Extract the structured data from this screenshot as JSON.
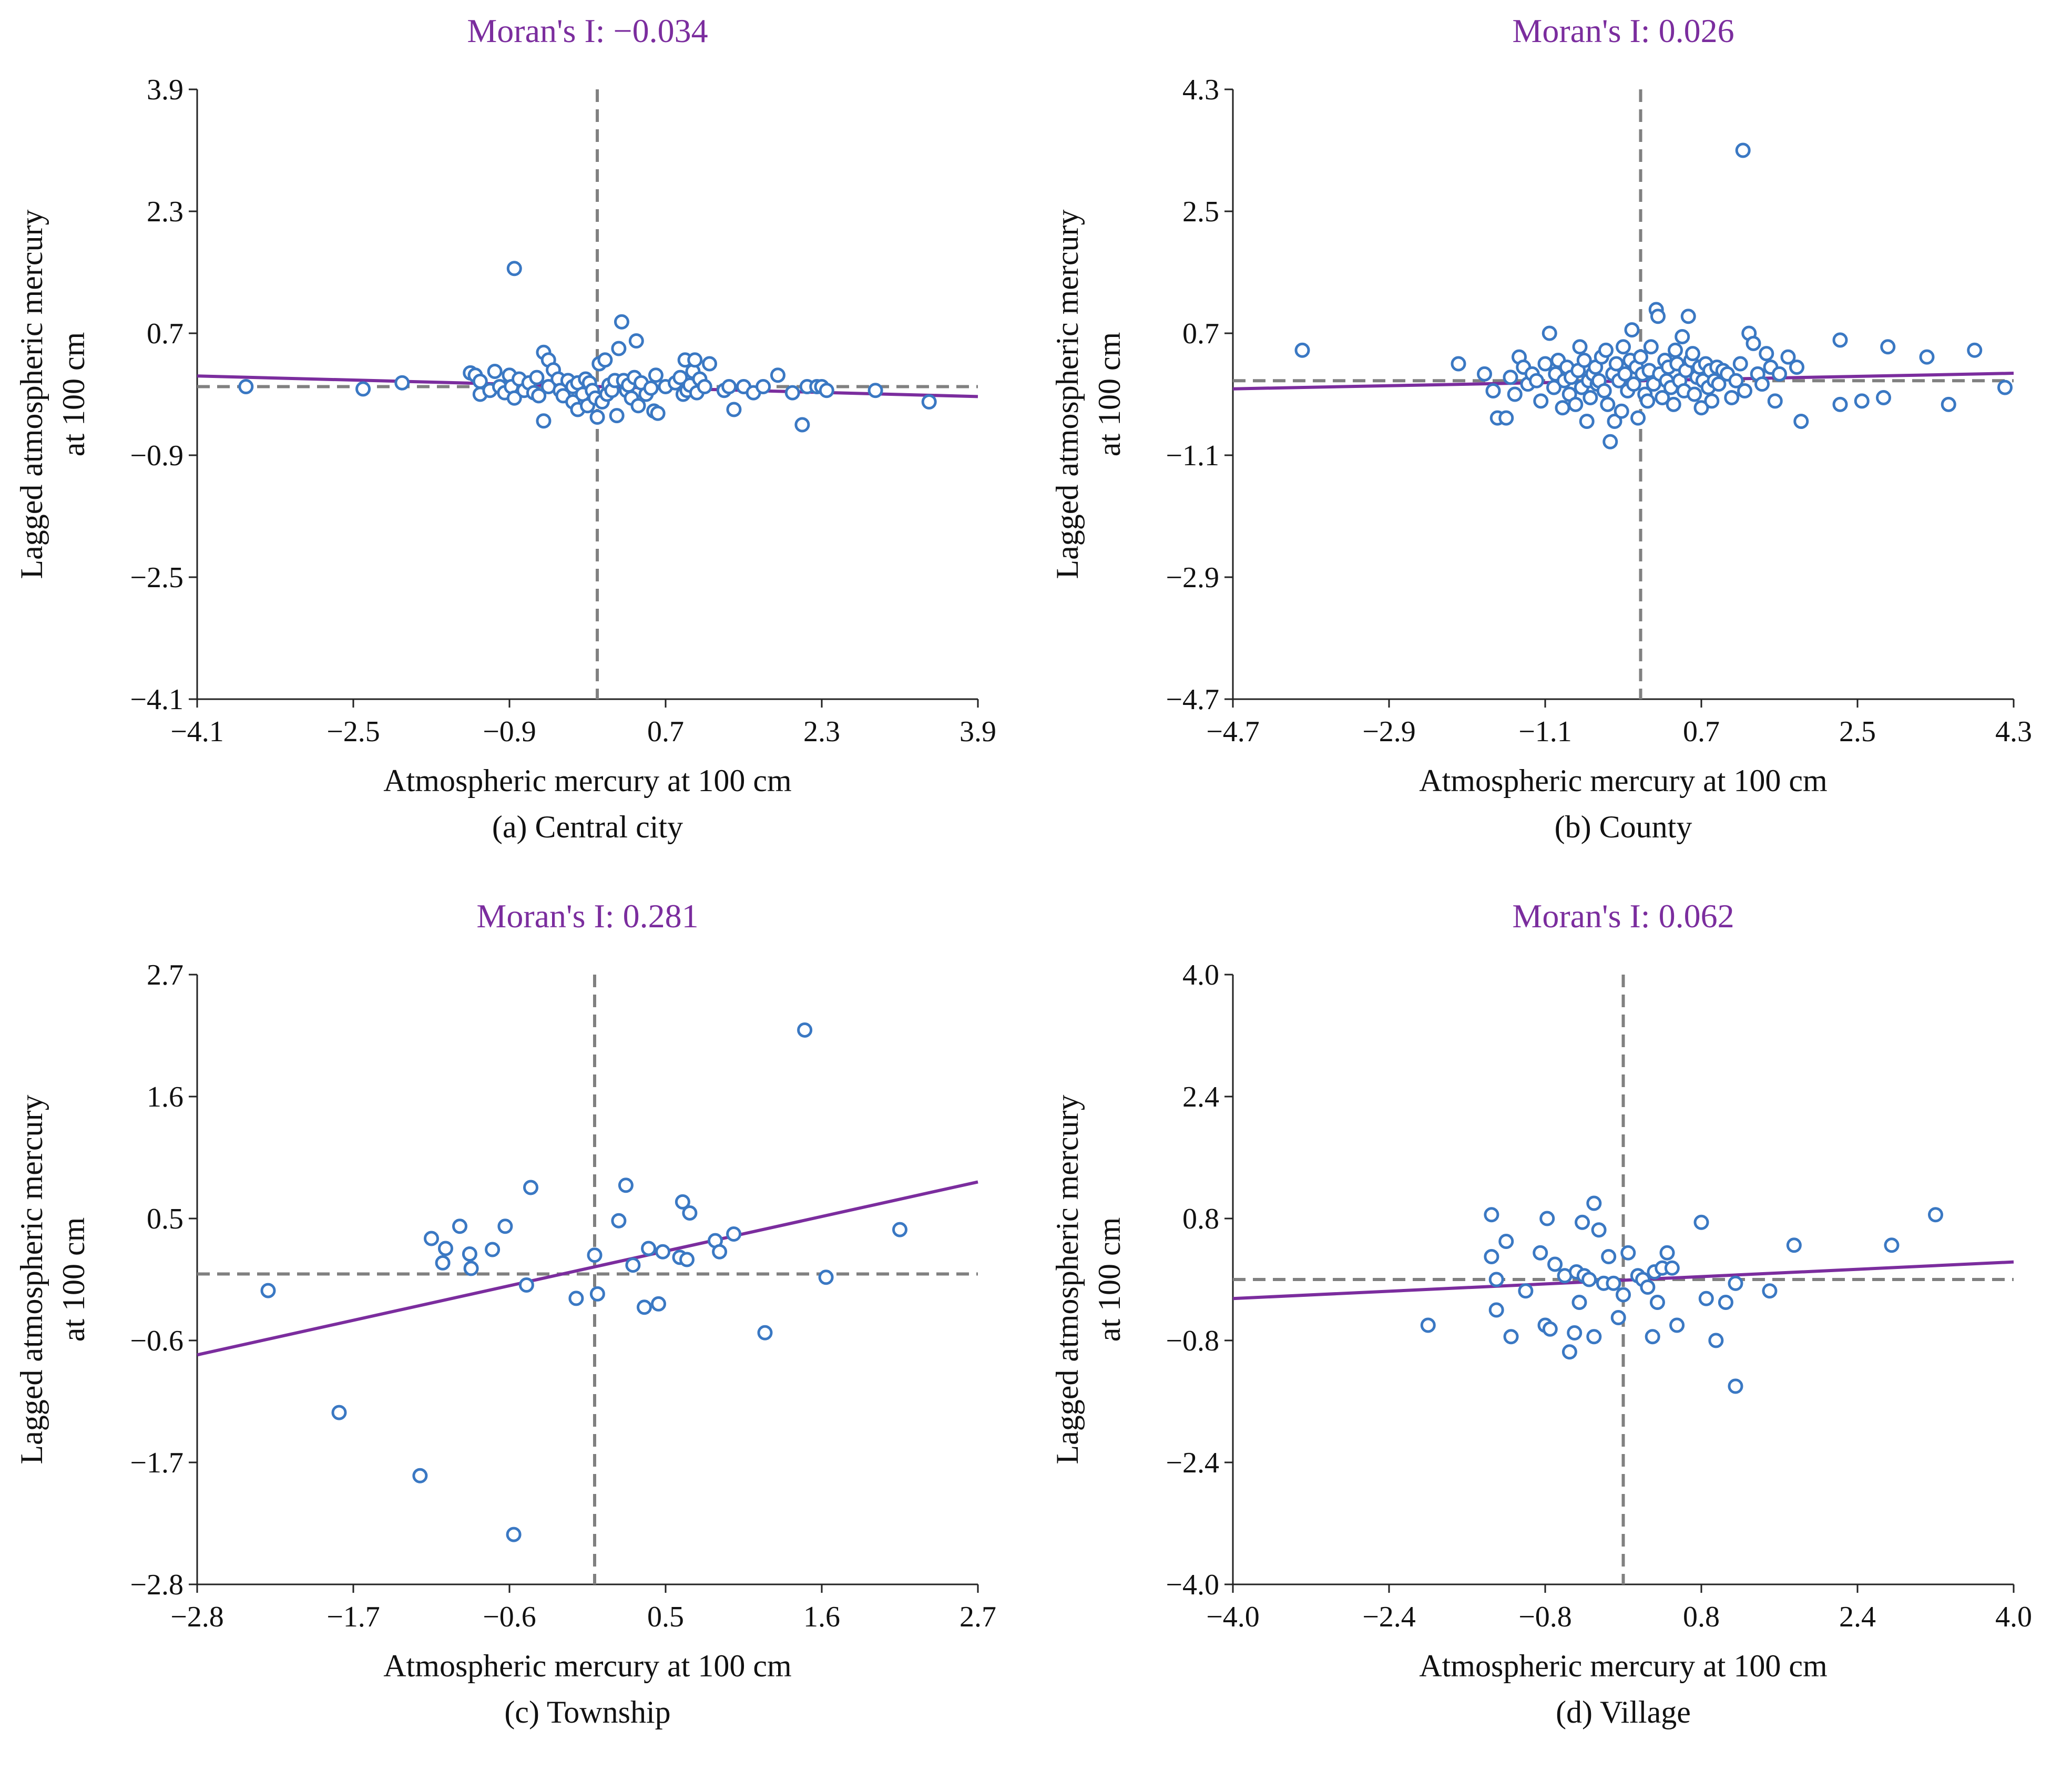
{
  "colors": {
    "points": "#3a78c3",
    "fit_line": "#7b2d9e",
    "ref_lines": "#808080",
    "title": "#7b2d9e"
  },
  "chart_data": [
    {
      "type": "scatter",
      "title": "Moran's I: −0.034",
      "xlabel": "Atmospheric mercury at 100 cm",
      "ylabel_line1": "Lagged atmospheric mercury",
      "ylabel_line2": "at 100 cm",
      "caption": "(a) Central city",
      "xlim": [
        -4.1,
        3.9
      ],
      "ylim": [
        -4.1,
        3.9
      ],
      "xticks": [
        -4.1,
        -2.5,
        -0.9,
        0.7,
        2.3,
        3.9
      ],
      "yticks": [
        -4.1,
        -2.5,
        -0.9,
        0.7,
        2.3,
        3.9
      ],
      "xtick_labels": [
        "−4.1",
        "−2.5",
        "−0.9",
        "0.7",
        "2.3",
        "3.9"
      ],
      "ytick_labels": [
        "−4.1",
        "−2.5",
        "−0.9",
        "0.7",
        "2.3",
        "3.9"
      ],
      "ref_x": 0.0,
      "ref_y": 0.0,
      "fit_line": [
        [
          -4.1,
          0.14
        ],
        [
          3.9,
          -0.13
        ]
      ],
      "points": [
        [
          -3.6,
          0.0
        ],
        [
          -2.4,
          -0.03
        ],
        [
          -2.0,
          0.05
        ],
        [
          -1.3,
          0.18
        ],
        [
          -1.25,
          0.15
        ],
        [
          -1.2,
          0.07
        ],
        [
          -1.2,
          -0.1
        ],
        [
          -1.1,
          -0.05
        ],
        [
          -1.05,
          0.2
        ],
        [
          -1.0,
          0.0
        ],
        [
          -0.95,
          -0.08
        ],
        [
          -0.9,
          0.15
        ],
        [
          -0.88,
          0.0
        ],
        [
          -0.85,
          -0.15
        ],
        [
          -0.85,
          1.55
        ],
        [
          -0.8,
          0.1
        ],
        [
          -0.75,
          -0.05
        ],
        [
          -0.7,
          0.05
        ],
        [
          -0.65,
          -0.08
        ],
        [
          -0.62,
          0.12
        ],
        [
          -0.6,
          -0.12
        ],
        [
          -0.55,
          -0.45
        ],
        [
          -0.55,
          0.45
        ],
        [
          -0.5,
          0.35
        ],
        [
          -0.5,
          0.0
        ],
        [
          -0.45,
          0.22
        ],
        [
          -0.4,
          0.1
        ],
        [
          -0.38,
          -0.05
        ],
        [
          -0.35,
          -0.12
        ],
        [
          -0.3,
          0.08
        ],
        [
          -0.25,
          -0.2
        ],
        [
          -0.25,
          0.0
        ],
        [
          -0.2,
          0.05
        ],
        [
          -0.2,
          -0.3
        ],
        [
          -0.15,
          -0.1
        ],
        [
          -0.12,
          0.1
        ],
        [
          -0.1,
          -0.25
        ],
        [
          -0.08,
          0.05
        ],
        [
          -0.05,
          -0.05
        ],
        [
          -0.02,
          -0.15
        ],
        [
          0.0,
          -0.4
        ],
        [
          0.02,
          0.3
        ],
        [
          0.05,
          -0.2
        ],
        [
          0.08,
          0.35
        ],
        [
          0.1,
          -0.1
        ],
        [
          0.12,
          0.02
        ],
        [
          0.15,
          -0.05
        ],
        [
          0.18,
          0.08
        ],
        [
          0.2,
          -0.38
        ],
        [
          0.22,
          0.5
        ],
        [
          0.25,
          0.85
        ],
        [
          0.27,
          0.08
        ],
        [
          0.3,
          -0.05
        ],
        [
          0.32,
          0.02
        ],
        [
          0.35,
          -0.15
        ],
        [
          0.38,
          0.12
        ],
        [
          0.4,
          0.6
        ],
        [
          0.42,
          -0.25
        ],
        [
          0.45,
          0.05
        ],
        [
          0.5,
          -0.1
        ],
        [
          0.55,
          -0.02
        ],
        [
          0.58,
          -0.32
        ],
        [
          0.6,
          0.15
        ],
        [
          0.62,
          -0.35
        ],
        [
          0.7,
          0.0
        ],
        [
          0.8,
          0.05
        ],
        [
          0.85,
          0.12
        ],
        [
          0.88,
          -0.1
        ],
        [
          0.9,
          0.35
        ],
        [
          0.92,
          -0.05
        ],
        [
          0.95,
          0.02
        ],
        [
          0.98,
          0.2
        ],
        [
          1.0,
          0.35
        ],
        [
          1.02,
          -0.08
        ],
        [
          1.05,
          0.1
        ],
        [
          1.1,
          0.0
        ],
        [
          1.15,
          0.3
        ],
        [
          1.3,
          -0.05
        ],
        [
          1.35,
          0.0
        ],
        [
          1.4,
          -0.3
        ],
        [
          1.5,
          0.0
        ],
        [
          1.6,
          -0.08
        ],
        [
          1.7,
          0.0
        ],
        [
          1.85,
          0.15
        ],
        [
          2.0,
          -0.08
        ],
        [
          2.1,
          -0.5
        ],
        [
          2.15,
          0.0
        ],
        [
          2.25,
          0.0
        ],
        [
          2.3,
          0.0
        ],
        [
          2.35,
          -0.05
        ],
        [
          2.85,
          -0.05
        ],
        [
          3.4,
          -0.2
        ]
      ]
    },
    {
      "type": "scatter",
      "title": "Moran's I: 0.026",
      "xlabel": "Atmospheric mercury at 100 cm",
      "ylabel_line1": "Lagged atmospheric mercury",
      "ylabel_line2": "at 100 cm",
      "caption": "(b) County",
      "xlim": [
        -4.7,
        4.3
      ],
      "ylim": [
        -4.7,
        4.3
      ],
      "xticks": [
        -4.7,
        -2.9,
        -1.1,
        0.7,
        2.5,
        4.3
      ],
      "yticks": [
        -4.7,
        -2.9,
        -1.1,
        0.7,
        2.5,
        4.3
      ],
      "xtick_labels": [
        "−4.7",
        "−2.9",
        "−1.1",
        "0.7",
        "2.5",
        "4.3"
      ],
      "ytick_labels": [
        "−4.7",
        "−2.9",
        "−1.1",
        "0.7",
        "2.5",
        "4.3"
      ],
      "ref_x": 0.0,
      "ref_y": 0.0,
      "fit_line": [
        [
          -4.7,
          -0.12
        ],
        [
          4.3,
          0.11
        ]
      ],
      "points": [
        [
          -3.9,
          0.45
        ],
        [
          -2.1,
          0.25
        ],
        [
          -1.8,
          0.1
        ],
        [
          -1.7,
          -0.15
        ],
        [
          -1.65,
          -0.55
        ],
        [
          -1.55,
          -0.55
        ],
        [
          -1.5,
          0.05
        ],
        [
          -1.45,
          -0.2
        ],
        [
          -1.4,
          0.35
        ],
        [
          -1.35,
          0.2
        ],
        [
          -1.3,
          -0.05
        ],
        [
          -1.25,
          0.1
        ],
        [
          -1.2,
          0.0
        ],
        [
          -1.15,
          -0.3
        ],
        [
          -1.1,
          0.25
        ],
        [
          -1.05,
          0.7
        ],
        [
          -1.0,
          -0.1
        ],
        [
          -0.98,
          0.1
        ],
        [
          -0.95,
          0.3
        ],
        [
          -0.9,
          -0.4
        ],
        [
          -0.88,
          0.0
        ],
        [
          -0.85,
          0.2
        ],
        [
          -0.82,
          -0.2
        ],
        [
          -0.8,
          0.05
        ],
        [
          -0.75,
          -0.35
        ],
        [
          -0.72,
          0.15
        ],
        [
          -0.7,
          0.5
        ],
        [
          -0.68,
          -0.1
        ],
        [
          -0.65,
          0.3
        ],
        [
          -0.62,
          -0.6
        ],
        [
          -0.6,
          0.0
        ],
        [
          -0.58,
          -0.25
        ],
        [
          -0.55,
          0.1
        ],
        [
          -0.52,
          0.2
        ],
        [
          -0.5,
          -0.05
        ],
        [
          -0.48,
          0.0
        ],
        [
          -0.45,
          0.35
        ],
        [
          -0.42,
          -0.15
        ],
        [
          -0.4,
          0.45
        ],
        [
          -0.38,
          -0.35
        ],
        [
          -0.35,
          -0.9
        ],
        [
          -0.32,
          0.1
        ],
        [
          -0.3,
          -0.6
        ],
        [
          -0.28,
          0.25
        ],
        [
          -0.25,
          0.0
        ],
        [
          -0.22,
          -0.45
        ],
        [
          -0.2,
          0.5
        ],
        [
          -0.18,
          0.1
        ],
        [
          -0.15,
          -0.15
        ],
        [
          -0.12,
          0.3
        ],
        [
          -0.1,
          0.75
        ],
        [
          -0.08,
          -0.05
        ],
        [
          -0.05,
          0.2
        ],
        [
          -0.03,
          -0.55
        ],
        [
          0.0,
          0.35
        ],
        [
          0.02,
          0.1
        ],
        [
          0.05,
          -0.2
        ],
        [
          0.08,
          -0.3
        ],
        [
          0.1,
          0.15
        ],
        [
          0.12,
          0.5
        ],
        [
          0.15,
          -0.05
        ],
        [
          0.18,
          1.05
        ],
        [
          0.2,
          0.95
        ],
        [
          0.22,
          0.1
        ],
        [
          0.25,
          -0.25
        ],
        [
          0.28,
          0.3
        ],
        [
          0.3,
          0.0
        ],
        [
          0.32,
          0.2
        ],
        [
          0.35,
          -0.1
        ],
        [
          0.38,
          -0.35
        ],
        [
          0.4,
          0.45
        ],
        [
          0.42,
          0.25
        ],
        [
          0.45,
          0.0
        ],
        [
          0.48,
          0.65
        ],
        [
          0.5,
          -0.15
        ],
        [
          0.52,
          0.15
        ],
        [
          0.55,
          0.95
        ],
        [
          0.58,
          0.3
        ],
        [
          0.6,
          0.4
        ],
        [
          0.62,
          -0.2
        ],
        [
          0.65,
          0.05
        ],
        [
          0.68,
          0.2
        ],
        [
          0.7,
          -0.4
        ],
        [
          0.72,
          0.0
        ],
        [
          0.75,
          0.25
        ],
        [
          0.78,
          -0.1
        ],
        [
          0.8,
          0.15
        ],
        [
          0.82,
          -0.3
        ],
        [
          0.85,
          0.0
        ],
        [
          0.88,
          0.2
        ],
        [
          0.9,
          -0.05
        ],
        [
          0.95,
          0.15
        ],
        [
          1.0,
          0.1
        ],
        [
          1.05,
          -0.25
        ],
        [
          1.1,
          0.0
        ],
        [
          1.15,
          0.25
        ],
        [
          1.2,
          -0.15
        ],
        [
          1.25,
          0.7
        ],
        [
          1.3,
          0.55
        ],
        [
          1.35,
          0.1
        ],
        [
          1.4,
          -0.05
        ],
        [
          1.45,
          0.4
        ],
        [
          1.5,
          0.2
        ],
        [
          1.55,
          -0.3
        ],
        [
          1.6,
          0.1
        ],
        [
          1.7,
          0.35
        ],
        [
          1.8,
          0.2
        ],
        [
          1.85,
          -0.6
        ],
        [
          2.3,
          0.6
        ],
        [
          2.3,
          -0.35
        ],
        [
          2.55,
          -0.3
        ],
        [
          2.8,
          -0.25
        ],
        [
          2.85,
          0.5
        ],
        [
          3.3,
          0.35
        ],
        [
          3.55,
          -0.35
        ],
        [
          3.85,
          0.45
        ],
        [
          4.2,
          -0.1
        ],
        [
          1.18,
          3.4
        ]
      ]
    },
    {
      "type": "scatter",
      "title": "Moran's I: 0.281",
      "xlabel": "Atmospheric mercury at 100 cm",
      "ylabel_line1": "Lagged atmospheric mercury",
      "ylabel_line2": "at 100 cm",
      "caption": "(c) Township",
      "xlim": [
        -2.8,
        2.7
      ],
      "ylim": [
        -2.8,
        2.7
      ],
      "xticks": [
        -2.8,
        -1.7,
        -0.6,
        0.5,
        1.6,
        2.7
      ],
      "yticks": [
        -2.8,
        -1.7,
        -0.6,
        0.5,
        1.6,
        2.7
      ],
      "xtick_labels": [
        "−2.8",
        "−1.7",
        "−0.6",
        "0.5",
        "1.6",
        "2.7"
      ],
      "ytick_labels": [
        "−2.8",
        "−1.7",
        "−0.6",
        "0.5",
        "1.6",
        "2.7"
      ],
      "ref_x": 0.0,
      "ref_y": 0.0,
      "fit_line": [
        [
          -2.8,
          -0.73
        ],
        [
          2.7,
          0.83
        ]
      ],
      "points": [
        [
          -2.3,
          -0.15
        ],
        [
          -1.8,
          -1.25
        ],
        [
          -1.23,
          -1.82
        ],
        [
          -1.15,
          0.32
        ],
        [
          -1.07,
          0.1
        ],
        [
          -1.05,
          0.23
        ],
        [
          -0.95,
          0.43
        ],
        [
          -0.88,
          0.18
        ],
        [
          -0.87,
          0.05
        ],
        [
          -0.72,
          0.22
        ],
        [
          -0.63,
          0.43
        ],
        [
          -0.57,
          -2.35
        ],
        [
          -0.48,
          -0.1
        ],
        [
          -0.45,
          0.78
        ],
        [
          -0.13,
          -0.22
        ],
        [
          0.0,
          0.17
        ],
        [
          0.02,
          -0.18
        ],
        [
          0.17,
          0.48
        ],
        [
          0.22,
          0.8
        ],
        [
          0.27,
          0.08
        ],
        [
          0.35,
          -0.3
        ],
        [
          0.38,
          0.23
        ],
        [
          0.45,
          -0.27
        ],
        [
          0.48,
          0.2
        ],
        [
          0.6,
          0.15
        ],
        [
          0.62,
          0.65
        ],
        [
          0.65,
          0.13
        ],
        [
          0.67,
          0.55
        ],
        [
          0.85,
          0.3
        ],
        [
          0.88,
          0.2
        ],
        [
          0.98,
          0.36
        ],
        [
          1.2,
          -0.53
        ],
        [
          1.48,
          2.2
        ],
        [
          1.63,
          -0.03
        ],
        [
          2.15,
          0.4
        ]
      ]
    },
    {
      "type": "scatter",
      "title": "Moran's I: 0.062",
      "xlabel": "Atmospheric mercury at 100 cm",
      "ylabel_line1": "Lagged atmospheric mercury",
      "ylabel_line2": "at 100 cm",
      "caption": "(d) Village",
      "xlim": [
        -4.0,
        4.0
      ],
      "ylim": [
        -4.0,
        4.0
      ],
      "xticks": [
        -4.0,
        -2.4,
        -0.8,
        0.8,
        2.4,
        4.0
      ],
      "yticks": [
        -4.0,
        -2.4,
        -0.8,
        0.8,
        2.4,
        4.0
      ],
      "xtick_labels": [
        "−4.0",
        "−2.4",
        "−0.8",
        "0.8",
        "2.4",
        "4.0"
      ],
      "ytick_labels": [
        "−4.0",
        "−2.4",
        "−0.8",
        "0.8",
        "2.4",
        "4.0"
      ],
      "ref_x": 0.0,
      "ref_y": 0.0,
      "fit_line": [
        [
          -4.0,
          -0.25
        ],
        [
          4.0,
          0.23
        ]
      ],
      "points": [
        [
          -2.0,
          -0.6
        ],
        [
          -1.35,
          0.85
        ],
        [
          -1.35,
          0.3
        ],
        [
          -1.3,
          -0.4
        ],
        [
          -1.3,
          0.0
        ],
        [
          -1.2,
          0.5
        ],
        [
          -1.15,
          -0.75
        ],
        [
          -1.0,
          -0.15
        ],
        [
          -0.85,
          0.35
        ],
        [
          -0.8,
          -0.6
        ],
        [
          -0.78,
          0.8
        ],
        [
          -0.75,
          -0.65
        ],
        [
          -0.7,
          0.2
        ],
        [
          -0.6,
          0.05
        ],
        [
          -0.55,
          -0.95
        ],
        [
          -0.5,
          -0.7
        ],
        [
          -0.48,
          0.1
        ],
        [
          -0.45,
          -0.3
        ],
        [
          -0.42,
          0.75
        ],
        [
          -0.4,
          0.05
        ],
        [
          -0.35,
          0.0
        ],
        [
          -0.3,
          -0.75
        ],
        [
          -0.3,
          1.0
        ],
        [
          -0.25,
          0.65
        ],
        [
          -0.2,
          -0.05
        ],
        [
          -0.15,
          0.3
        ],
        [
          -0.1,
          -0.05
        ],
        [
          -0.05,
          -0.5
        ],
        [
          0.0,
          -0.2
        ],
        [
          0.05,
          0.35
        ],
        [
          0.15,
          0.05
        ],
        [
          0.2,
          0.0
        ],
        [
          0.25,
          -0.1
        ],
        [
          0.3,
          -0.75
        ],
        [
          0.32,
          0.1
        ],
        [
          0.35,
          -0.3
        ],
        [
          0.4,
          0.15
        ],
        [
          0.45,
          0.35
        ],
        [
          0.5,
          0.15
        ],
        [
          0.55,
          -0.6
        ],
        [
          0.8,
          0.75
        ],
        [
          0.85,
          -0.25
        ],
        [
          0.95,
          -0.8
        ],
        [
          1.05,
          -0.3
        ],
        [
          1.15,
          -0.05
        ],
        [
          1.15,
          -1.4
        ],
        [
          1.5,
          -0.15
        ],
        [
          1.75,
          0.45
        ],
        [
          2.75,
          0.45
        ],
        [
          3.2,
          0.85
        ]
      ]
    }
  ]
}
